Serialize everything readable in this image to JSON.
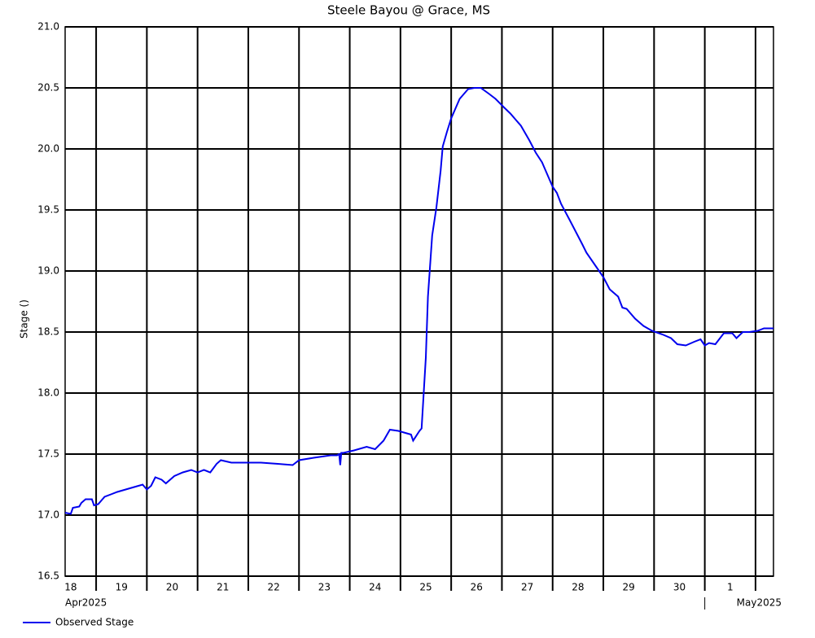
{
  "chart_data": {
    "type": "line",
    "title": "Steele Bayou @ Grace, MS",
    "y_label": "Stage ()",
    "xlim": [
      "2025-04-18T09:20",
      "2025-05-02T08:30"
    ],
    "ylim": [
      16.5,
      21.0
    ],
    "yticks": [
      16.5,
      {
        "value": 17.0,
        "label": "17.0"
      },
      17.5,
      {
        "value": 18.0,
        "label": "18.0"
      },
      18.5,
      {
        "value": 19.0,
        "label": "19.0"
      },
      19.5,
      {
        "value": 20.0,
        "label": "20.0"
      },
      20.5,
      {
        "value": 21.0,
        "label": "21.0"
      }
    ],
    "xticks": [
      {
        "value": "2025-04-18T12:00",
        "label": "18"
      },
      {
        "value": "2025-04-19T12:00",
        "label": "19"
      },
      {
        "value": "2025-04-20T12:00",
        "label": "20"
      },
      {
        "value": "2025-04-21T12:00",
        "label": "21"
      },
      {
        "value": "2025-04-22T12:00",
        "label": "22"
      },
      {
        "value": "2025-04-23T12:00",
        "label": "23"
      },
      {
        "value": "2025-04-24T12:00",
        "label": "24"
      },
      {
        "value": "2025-04-25T12:00",
        "label": "25"
      },
      {
        "value": "2025-04-26T12:00",
        "label": "26"
      },
      {
        "value": "2025-04-27T12:00",
        "label": "27"
      },
      {
        "value": "2025-04-28T12:00",
        "label": "28"
      },
      {
        "value": "2025-04-29T12:00",
        "label": "29"
      },
      {
        "value": "2025-04-30T12:00",
        "label": "30"
      },
      {
        "value": "2025-05-01T12:00",
        "label": "1"
      }
    ],
    "xgrid": [
      "2025-04-19T00:00",
      "2025-04-20T00:00",
      "2025-04-21T00:00",
      "2025-04-22T00:00",
      "2025-04-23T00:00",
      "2025-04-24T00:00",
      "2025-04-25T00:00",
      "2025-04-26T00:00",
      "2025-04-27T00:00",
      "2025-04-28T00:00",
      "2025-04-29T00:00",
      "2025-04-30T00:00",
      "2025-05-01T00:00",
      "2025-05-02T00:00"
    ],
    "month_labels": [
      {
        "value": "2025-04-18T09:20",
        "label": "Apr2025"
      },
      {
        "value": "2025-05-01T00:00",
        "label": "May2025"
      }
    ],
    "grid": true,
    "x": [
      "2025-04-18T09:20",
      "2025-04-18T12:00",
      "2025-04-18T13:00",
      "2025-04-18T16:00",
      "2025-04-18T17:00",
      "2025-04-18T19:00",
      "2025-04-18T22:00",
      "2025-04-18T23:00",
      "2025-04-19T01:00",
      "2025-04-19T04:00",
      "2025-04-19T07:00",
      "2025-04-19T10:00",
      "2025-04-19T14:00",
      "2025-04-19T18:00",
      "2025-04-19T22:00",
      "2025-04-20T00:00",
      "2025-04-20T02:00",
      "2025-04-20T04:00",
      "2025-04-20T07:00",
      "2025-04-20T09:00",
      "2025-04-20T13:00",
      "2025-04-20T17:00",
      "2025-04-20T21:00",
      "2025-04-21T00:00",
      "2025-04-21T03:00",
      "2025-04-21T06:00",
      "2025-04-21T09:00",
      "2025-04-21T11:00",
      "2025-04-21T16:00",
      "2025-04-21T22:00",
      "2025-04-22T06:00",
      "2025-04-22T14:00",
      "2025-04-22T21:00",
      "2025-04-23T00:00",
      "2025-04-23T07:00",
      "2025-04-23T11:00",
      "2025-04-23T15:00",
      "2025-04-23T18:00",
      "2025-04-23T19:00",
      "2025-04-23T19:30",
      "2025-04-23T20:00",
      "2025-04-23T21:00",
      "2025-04-24T02:00",
      "2025-04-24T08:00",
      "2025-04-24T12:00",
      "2025-04-24T16:00",
      "2025-04-24T19:00",
      "2025-04-24T23:00",
      "2025-04-25T05:00",
      "2025-04-25T06:00",
      "2025-04-25T09:00",
      "2025-04-25T10:00",
      "2025-04-25T12:00",
      "2025-04-25T13:00",
      "2025-04-25T15:00",
      "2025-04-25T17:00",
      "2025-04-25T19:00",
      "2025-04-25T20:00",
      "2025-04-25T22:00",
      "2025-04-26T00:00",
      "2025-04-26T02:00",
      "2025-04-26T04:00",
      "2025-04-26T06:00",
      "2025-04-26T08:00",
      "2025-04-26T11:00",
      "2025-04-26T14:00",
      "2025-04-26T18:00",
      "2025-04-26T21:00",
      "2025-04-27T01:00",
      "2025-04-27T04:00",
      "2025-04-27T09:00",
      "2025-04-27T13:00",
      "2025-04-27T16:00",
      "2025-04-27T19:00",
      "2025-04-27T21:00",
      "2025-04-28T00:00",
      "2025-04-28T02:00",
      "2025-04-28T04:00",
      "2025-04-28T08:00",
      "2025-04-28T11:00",
      "2025-04-28T14:00",
      "2025-04-28T16:00",
      "2025-04-28T20:00",
      "2025-04-29T00:00",
      "2025-04-29T03:00",
      "2025-04-29T07:00",
      "2025-04-29T09:00",
      "2025-04-29T11:00",
      "2025-04-29T15:00",
      "2025-04-29T19:00",
      "2025-04-29T23:00",
      "2025-04-30T04:00",
      "2025-04-30T08:00",
      "2025-04-30T11:00",
      "2025-04-30T15:00",
      "2025-04-30T19:00",
      "2025-04-30T22:00",
      "2025-05-01T00:00",
      "2025-05-01T02:00",
      "2025-05-01T05:00",
      "2025-05-01T09:00",
      "2025-05-01T13:00",
      "2025-05-01T15:00",
      "2025-05-01T18:00",
      "2025-05-01T21:00",
      "2025-05-02T01:00",
      "2025-05-02T04:00",
      "2025-05-02T08:30"
    ],
    "series": [
      {
        "name": "Observed Stage",
        "color": "#0000ee",
        "values": [
          17.02,
          17.01,
          17.06,
          17.07,
          17.1,
          17.13,
          17.13,
          17.08,
          17.09,
          17.15,
          17.17,
          17.19,
          17.21,
          17.23,
          17.25,
          17.21,
          17.24,
          17.31,
          17.29,
          17.26,
          17.32,
          17.35,
          17.37,
          17.35,
          17.37,
          17.35,
          17.42,
          17.45,
          17.43,
          17.43,
          17.43,
          17.42,
          17.41,
          17.45,
          17.47,
          17.48,
          17.49,
          17.49,
          17.5,
          17.41,
          17.51,
          17.51,
          17.53,
          17.56,
          17.54,
          17.61,
          17.7,
          17.69,
          17.66,
          17.61,
          17.69,
          17.71,
          18.29,
          18.79,
          19.29,
          19.52,
          19.82,
          20.02,
          20.14,
          20.25,
          20.33,
          20.41,
          20.45,
          20.49,
          20.5,
          20.5,
          20.45,
          20.41,
          20.34,
          20.29,
          20.19,
          20.07,
          19.97,
          19.89,
          19.81,
          19.69,
          19.64,
          19.55,
          19.42,
          19.32,
          19.22,
          19.15,
          19.05,
          18.95,
          18.85,
          18.79,
          18.7,
          18.69,
          18.61,
          18.55,
          18.51,
          18.48,
          18.45,
          18.4,
          18.39,
          18.42,
          18.44,
          18.39,
          18.41,
          18.4,
          18.49,
          18.49,
          18.45,
          18.5,
          18.5,
          18.51,
          18.53,
          18.53
        ]
      }
    ]
  }
}
